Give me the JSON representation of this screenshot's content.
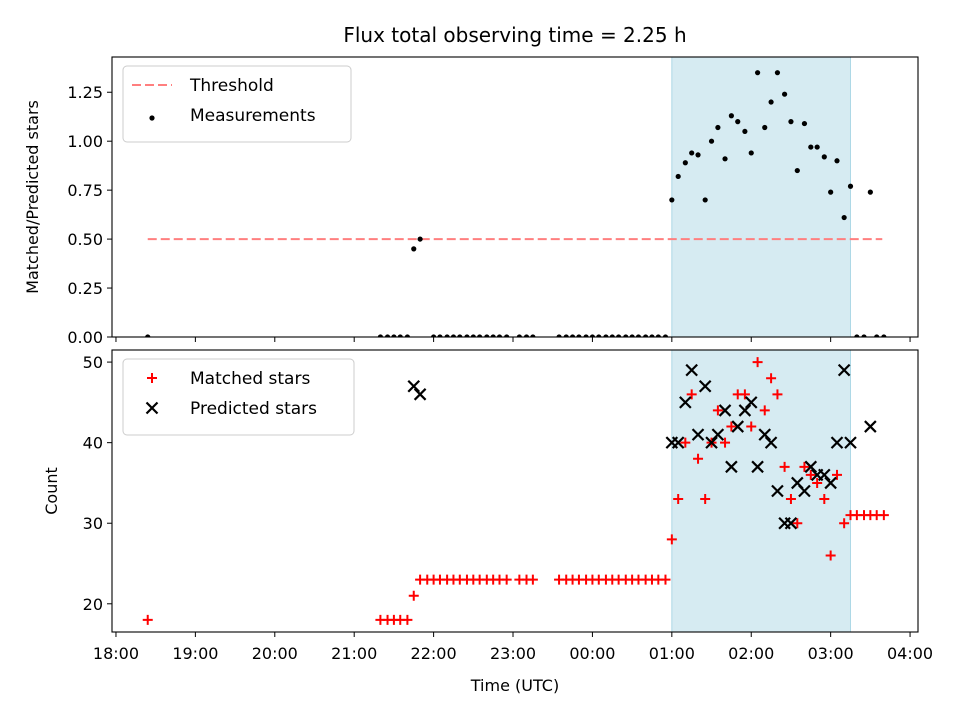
{
  "figure_title": "Flux total observing time = 2.25 h",
  "colors": {
    "shade": "#add8e6",
    "threshold": "#ff7f7f",
    "measurement": "#000000",
    "matched": "#ff0000",
    "predicted": "#000000"
  },
  "chart_data": [
    {
      "type": "scatter",
      "ylabel": "Matched/Predicted stars",
      "ylim": [
        0,
        1.43
      ],
      "yticks": [
        0,
        0.25,
        0.5,
        0.75,
        1.0,
        1.25
      ],
      "ytick_labels": [
        "0.00",
        "0.25",
        "0.50",
        "0.75",
        "1.00",
        "1.25"
      ],
      "xlim": [
        -0.05,
        10.1
      ],
      "xticks": [
        0,
        1,
        2,
        3,
        4,
        5,
        6,
        7,
        8,
        9,
        10
      ],
      "xtick_labels": [
        "18:00",
        "19:00",
        "20:00",
        "21:00",
        "22:00",
        "23:00",
        "00:00",
        "01:00",
        "02:00",
        "03:00",
        "04:00"
      ],
      "legend_position": "top-left",
      "shaded_span": [
        7.0,
        9.25
      ],
      "threshold": {
        "name": "Threshold",
        "y": 0.5,
        "x": [
          0.4,
          9.65
        ]
      },
      "series": [
        {
          "name": "Measurements",
          "x": [
            0.4,
            3.33,
            3.42,
            3.5,
            3.58,
            3.67,
            3.75,
            3.83,
            4.0,
            4.08,
            4.17,
            4.25,
            4.33,
            4.42,
            4.5,
            4.58,
            4.67,
            4.75,
            4.83,
            4.92,
            5.08,
            5.17,
            5.25,
            5.58,
            5.67,
            5.75,
            5.83,
            5.92,
            6.0,
            6.08,
            6.17,
            6.25,
            6.33,
            6.42,
            6.5,
            6.58,
            6.67,
            6.75,
            6.83,
            6.92,
            7.0,
            7.08,
            7.17,
            7.25,
            7.33,
            7.42,
            7.5,
            7.58,
            7.67,
            7.75,
            7.83,
            7.92,
            8.0,
            8.08,
            8.17,
            8.25,
            8.33,
            8.42,
            8.5,
            8.58,
            8.67,
            8.75,
            8.83,
            8.92,
            9.0,
            9.08,
            9.17,
            9.25,
            9.33,
            9.42,
            9.5,
            9.58,
            9.67
          ],
          "y": [
            0,
            0,
            0,
            0,
            0,
            0,
            0.45,
            0.5,
            0,
            0,
            0,
            0,
            0,
            0,
            0,
            0,
            0,
            0,
            0,
            0,
            0,
            0,
            0,
            0,
            0,
            0,
            0,
            0,
            0,
            0,
            0,
            0,
            0,
            0,
            0,
            0,
            0,
            0,
            0,
            0,
            0.7,
            0.82,
            0.89,
            0.94,
            0.93,
            0.7,
            1.0,
            1.07,
            0.91,
            1.13,
            1.1,
            1.05,
            0.94,
            1.35,
            1.07,
            1.2,
            1.35,
            1.24,
            1.1,
            0.85,
            1.09,
            0.97,
            0.97,
            0.92,
            0.74,
            0.9,
            0.61,
            0.77,
            0,
            0,
            0.74,
            0,
            0
          ]
        }
      ]
    },
    {
      "type": "scatter",
      "xlabel": "Time (UTC)",
      "ylabel": "Count",
      "ylim": [
        16.5,
        51.5
      ],
      "yticks": [
        20,
        30,
        40,
        50
      ],
      "ytick_labels": [
        "20",
        "30",
        "40",
        "50"
      ],
      "xlim": [
        -0.05,
        10.1
      ],
      "xticks": [
        0,
        1,
        2,
        3,
        4,
        5,
        6,
        7,
        8,
        9,
        10
      ],
      "xtick_labels": [
        "18:00",
        "19:00",
        "20:00",
        "21:00",
        "22:00",
        "23:00",
        "00:00",
        "01:00",
        "02:00",
        "03:00",
        "04:00"
      ],
      "legend_position": "top-left",
      "shaded_span": [
        7.0,
        9.25
      ],
      "series": [
        {
          "name": "Matched stars",
          "marker": "plus",
          "x": [
            0.4,
            3.33,
            3.42,
            3.5,
            3.58,
            3.67,
            3.75,
            3.83,
            3.92,
            4.0,
            4.08,
            4.17,
            4.25,
            4.33,
            4.42,
            4.5,
            4.58,
            4.67,
            4.75,
            4.83,
            4.92,
            5.08,
            5.17,
            5.25,
            5.58,
            5.67,
            5.75,
            5.83,
            5.92,
            6.0,
            6.08,
            6.17,
            6.25,
            6.33,
            6.42,
            6.5,
            6.58,
            6.67,
            6.75,
            6.83,
            6.92,
            7.0,
            7.08,
            7.17,
            7.25,
            7.33,
            7.42,
            7.5,
            7.58,
            7.67,
            7.75,
            7.83,
            7.92,
            8.0,
            8.08,
            8.17,
            8.25,
            8.33,
            8.42,
            8.5,
            8.58,
            8.67,
            8.75,
            8.83,
            8.92,
            9.0,
            9.08,
            9.17,
            9.25,
            9.33,
            9.42,
            9.5,
            9.58,
            9.67
          ],
          "y": [
            18,
            18,
            18,
            18,
            18,
            18,
            21,
            23,
            23,
            23,
            23,
            23,
            23,
            23,
            23,
            23,
            23,
            23,
            23,
            23,
            23,
            23,
            23,
            23,
            23,
            23,
            23,
            23,
            23,
            23,
            23,
            23,
            23,
            23,
            23,
            23,
            23,
            23,
            23,
            23,
            23,
            28,
            33,
            40,
            46,
            38,
            33,
            40,
            44,
            40,
            42,
            46,
            46,
            42,
            50,
            44,
            48,
            46,
            37,
            33,
            30,
            37,
            36,
            35,
            33,
            26,
            36,
            30,
            31,
            31,
            31,
            31,
            31,
            31
          ]
        },
        {
          "name": "Predicted stars",
          "marker": "x",
          "x": [
            3.75,
            3.83,
            7.0,
            7.08,
            7.17,
            7.25,
            7.33,
            7.42,
            7.5,
            7.58,
            7.67,
            7.75,
            7.83,
            7.92,
            8.0,
            8.08,
            8.17,
            8.25,
            8.33,
            8.42,
            8.5,
            8.58,
            8.67,
            8.75,
            8.83,
            8.92,
            9.0,
            9.08,
            9.17,
            9.25,
            9.5
          ],
          "y": [
            47,
            46,
            40,
            40,
            45,
            49,
            41,
            47,
            40,
            41,
            44,
            37,
            42,
            44,
            45,
            37,
            41,
            40,
            34,
            30,
            30,
            35,
            34,
            37,
            36,
            36,
            35,
            40,
            49,
            40,
            42
          ]
        }
      ]
    }
  ]
}
